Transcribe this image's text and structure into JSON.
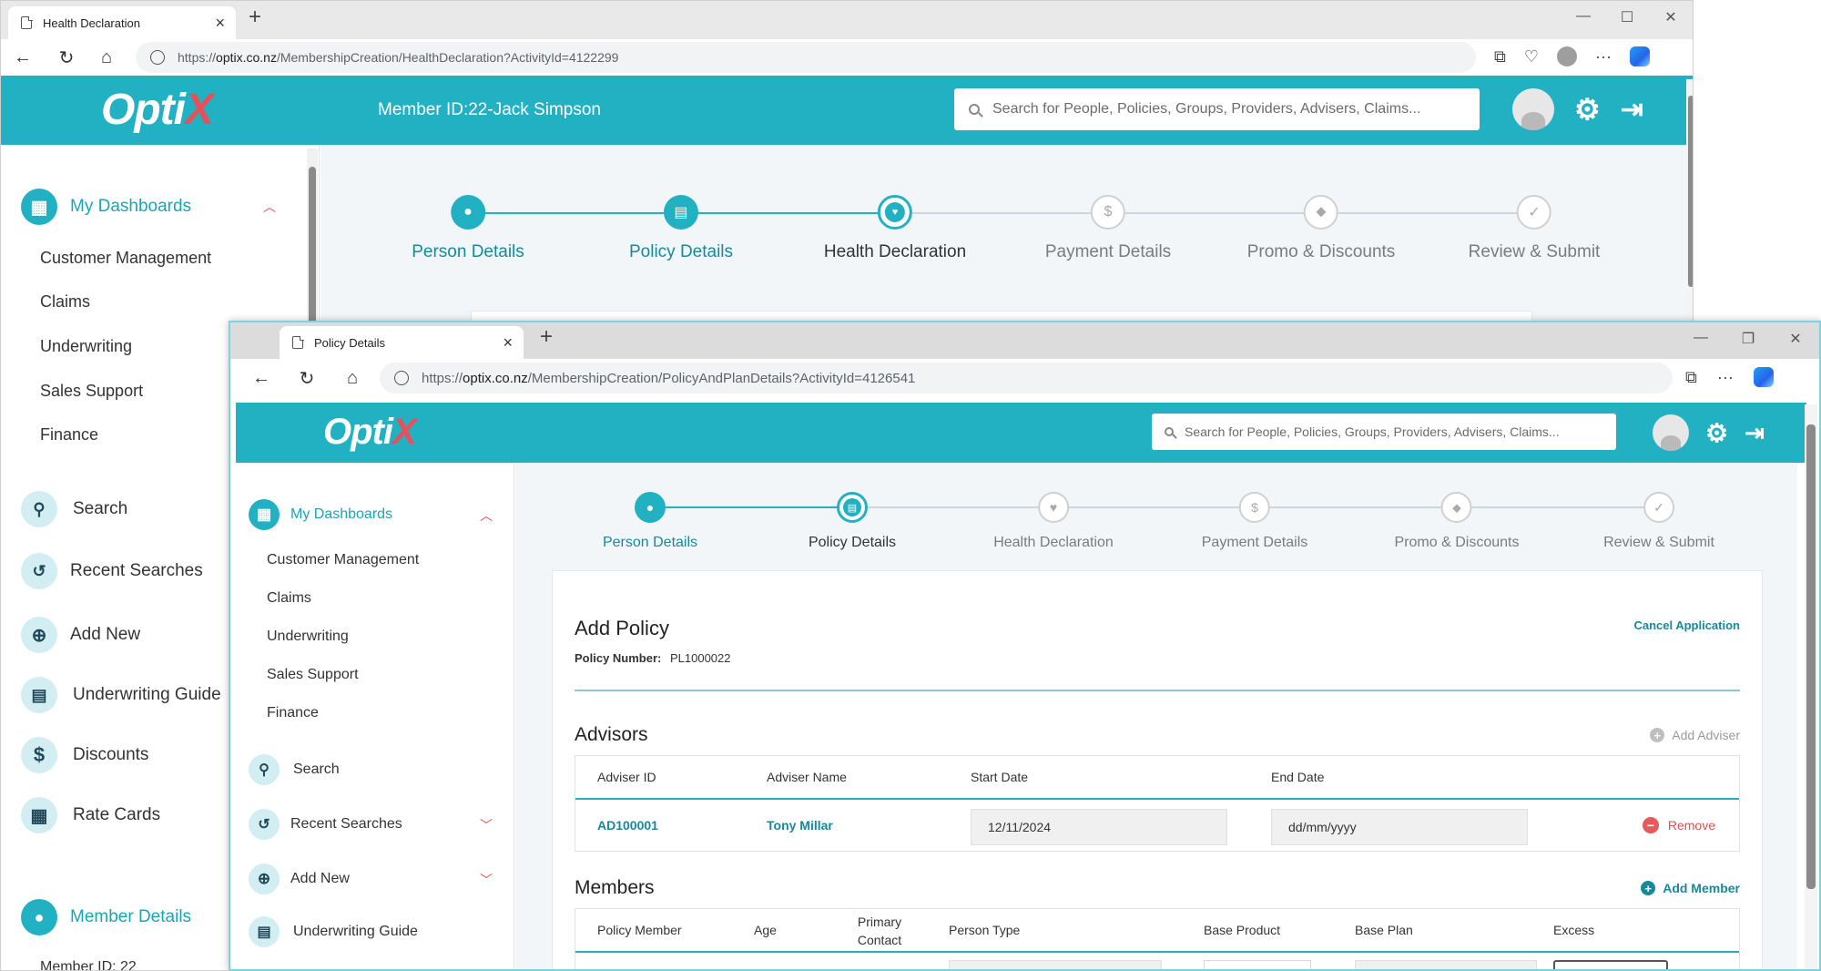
{
  "back_window": {
    "tab_title": "Health Declaration",
    "url_prefix": "https://",
    "url_host": "optix.co.nz",
    "url_path": "/MembershipCreation/HealthDeclaration?ActivityId=4122299",
    "logo_text": "Opti",
    "logo_x": "X",
    "member_label": "Member ID:22-Jack Simpson",
    "search_placeholder": "Search for People, Policies, Groups, Providers, Advisers, Claims...",
    "sidebar": {
      "dashboards": "My Dashboards",
      "sub": [
        "Customer Management",
        "Claims",
        "Underwriting",
        "Sales Support",
        "Finance"
      ],
      "sections": [
        "Search",
        "Recent Searches",
        "Add New",
        "Underwriting Guide",
        "Discounts",
        "Rate Cards"
      ],
      "member_details": "Member Details",
      "member_id": "Member ID: 22"
    },
    "steps": [
      "Person Details",
      "Policy Details",
      "Health Declaration",
      "Payment Details",
      "Promo & Discounts",
      "Review & Submit"
    ]
  },
  "front_window": {
    "tab_title": "Policy Details",
    "url_prefix": "https://",
    "url_host": "optix.co.nz",
    "url_path": "/MembershipCreation/PolicyAndPlanDetails?ActivityId=4126541",
    "logo_text": "Opti",
    "logo_x": "X",
    "search_placeholder": "Search for People, Policies, Groups, Providers, Advisers, Claims...",
    "sidebar": {
      "dashboards": "My Dashboards",
      "sub": [
        "Customer Management",
        "Claims",
        "Underwriting",
        "Sales Support",
        "Finance"
      ],
      "sections": [
        "Search",
        "Recent Searches",
        "Add New",
        "Underwriting Guide"
      ]
    },
    "steps": [
      "Person Details",
      "Policy Details",
      "Health Declaration",
      "Payment Details",
      "Promo & Discounts",
      "Review & Submit"
    ],
    "add_policy": {
      "title": "Add Policy",
      "policy_number_label": "Policy Number:",
      "policy_number": "PL1000022",
      "cancel": "Cancel Application"
    },
    "advisors": {
      "title": "Advisors",
      "add": "Add Adviser",
      "columns": [
        "Adviser ID",
        "Adviser Name",
        "Start Date",
        "End Date"
      ],
      "row": {
        "id": "AD100001",
        "name": "Tony Millar",
        "start": "12/11/2024",
        "end_placeholder": "dd/mm/yyyy",
        "remove": "Remove"
      }
    },
    "members": {
      "title": "Members",
      "add": "Add Member",
      "columns": [
        "Policy Member",
        "Age",
        "Primary",
        "Contact",
        "Person Type",
        "Base Product",
        "Base Plan",
        "Excess"
      ]
    }
  },
  "colors": {
    "brand": "#22b1c3",
    "brand_dark": "#168a9b",
    "danger": "#e55a5a",
    "logo_x": "#e94f5b"
  }
}
